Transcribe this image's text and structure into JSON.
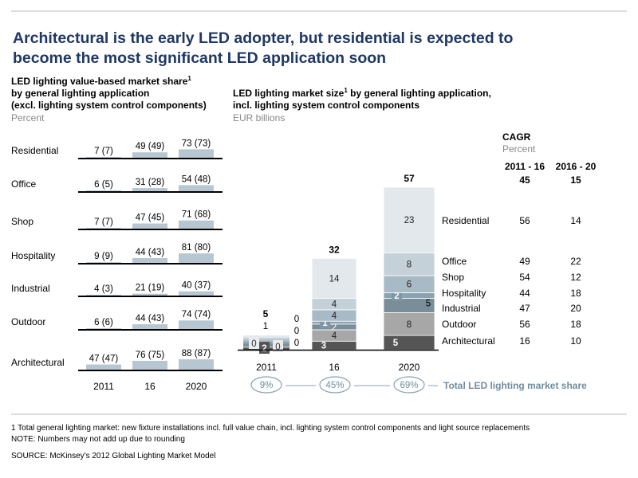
{
  "title_line1": "Architectural is the early LED adopter, but residential is expected to",
  "title_line2": "become the most significant LED application soon",
  "colors": {
    "title": "#1f3864",
    "small_bar": "#b7c7d1",
    "gray_text": "#888888",
    "bubble": "#7d97a6",
    "share_label": "#6f8da0",
    "seg_resid": "#e2e8ec",
    "seg_office": "#c5d1d8",
    "seg_shop": "#a8bac5",
    "seg_hosp": "#8ba3b1",
    "seg_ind": "#7a8e99",
    "seg_outdoor": "#a7a7a7",
    "seg_arch": "#555555"
  },
  "left_panel": {
    "title_line1": "LED lighting value-based market share",
    "title_sup": "1",
    "title_line2": "by general lighting application",
    "title_line3": "(excl. lighting system control components)",
    "unit": "Percent"
  },
  "right_panel": {
    "title_line1": "LED lighting market size",
    "title_sup": "1",
    "title_line1_rest": " by general lighting application,",
    "title_line2": "incl. lighting system control components",
    "unit": "EUR billions"
  },
  "cagr": {
    "title": "CAGR",
    "unit": "Percent",
    "col1": "2011 - 16",
    "col2": "2016 - 20",
    "total1": "45",
    "total2": "15"
  },
  "share_label": "Total LED lighting market share",
  "footnote_line1": "1 Total general lighting market: new fixture installations incl. full value chain, incl. lighting system control components and light source replacements",
  "footnote_line2": "NOTE: Numbers may not add up due to rounding",
  "source": "SOURCE: McKinsey's 2012 Global Lighting Market Model",
  "chart_data": [
    {
      "type": "bar",
      "title": "LED lighting value-based market share by general lighting application (excl. lighting system control components)",
      "unit": "Percent",
      "categories": [
        "2011",
        "16",
        "2020"
      ],
      "rows": [
        {
          "name": "Residential",
          "values": [
            7,
            49,
            73
          ],
          "labels": [
            "7 (7)",
            "49 (49)",
            "73 (73)"
          ]
        },
        {
          "name": "Office",
          "values": [
            6,
            31,
            54
          ],
          "labels": [
            "6 (5)",
            "31 (28)",
            "54 (48)"
          ]
        },
        {
          "name": "Shop",
          "values": [
            7,
            47,
            71
          ],
          "labels": [
            "7 (7)",
            "47 (45)",
            "71 (68)"
          ]
        },
        {
          "name": "Hospitality",
          "values": [
            9,
            44,
            81
          ],
          "labels": [
            "9 (9)",
            "44 (43)",
            "81 (80)"
          ]
        },
        {
          "name": "Industrial",
          "values": [
            4,
            21,
            40
          ],
          "labels": [
            "4 (3)",
            "21 (19)",
            "40 (37)"
          ]
        },
        {
          "name": "Outdoor",
          "values": [
            6,
            44,
            74
          ],
          "labels": [
            "6 (6)",
            "44 (43)",
            "74 (74)"
          ]
        },
        {
          "name": "Architectural",
          "values": [
            47,
            76,
            88
          ],
          "labels": [
            "47 (47)",
            "76 (75)",
            "88 (87)"
          ]
        }
      ]
    },
    {
      "type": "bar",
      "stacked": true,
      "title": "LED lighting market size by general lighting application, incl. lighting system control components",
      "unit": "EUR billions",
      "categories": [
        "2011",
        "16",
        "2020"
      ],
      "totals": [
        5,
        32,
        57
      ],
      "market_share": [
        "9%",
        "45%",
        "69%"
      ],
      "series": [
        {
          "name": "Architectural",
          "values": [
            2,
            3,
            5
          ],
          "cagr": [
            "16",
            "10"
          ]
        },
        {
          "name": "Outdoor",
          "values": [
            0,
            4,
            8
          ],
          "cagr": [
            "56",
            "18"
          ]
        },
        {
          "name": "Industrial",
          "values": [
            0,
            2,
            5
          ],
          "cagr": [
            "47",
            "20"
          ]
        },
        {
          "name": "Hospitality",
          "values": [
            0,
            1,
            2
          ],
          "cagr": [
            "44",
            "18"
          ]
        },
        {
          "name": "Shop",
          "values": [
            0,
            4,
            6
          ],
          "cagr": [
            "54",
            "12"
          ]
        },
        {
          "name": "Office",
          "values": [
            1,
            4,
            8
          ],
          "cagr": [
            "49",
            "22"
          ]
        },
        {
          "name": "Residential",
          "values": [
            0,
            14,
            23
          ],
          "cagr": [
            "56",
            "14"
          ]
        }
      ]
    }
  ]
}
